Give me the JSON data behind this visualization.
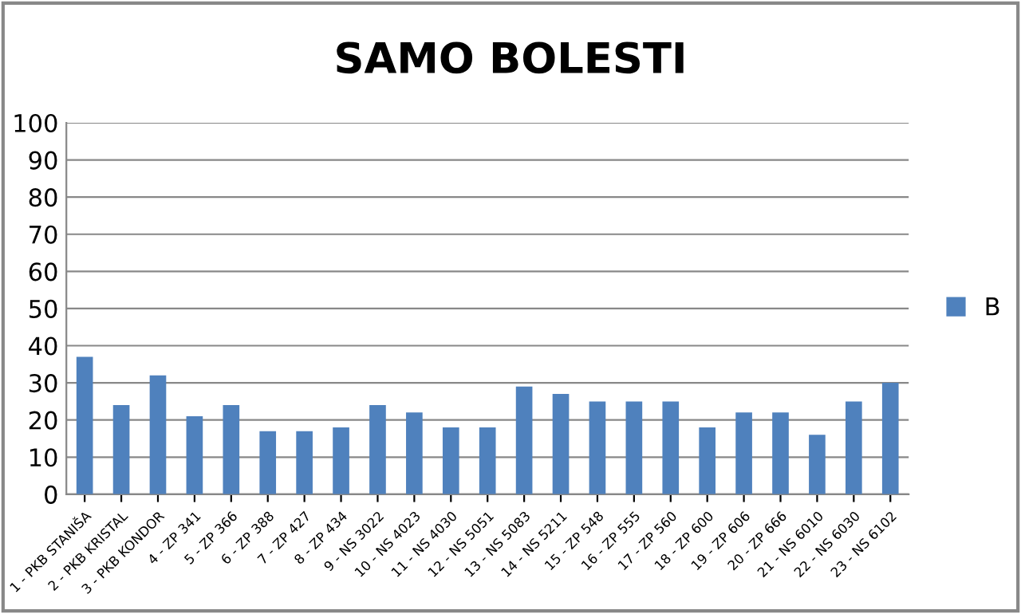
{
  "chart_data": {
    "type": "bar",
    "title": "SAMO BOLESTI",
    "categories": [
      "1 - PKB STANIŠA",
      "2 - PKB KRISTAL",
      "3 - PKB KONDOR",
      "4 - ZP 341",
      "5 - ZP 366",
      "6 - ZP 388",
      "7 - ZP 427",
      "8 - ZP 434",
      "9 - NS 3022",
      "10 - NS 4023",
      "11 - NS 4030",
      "12 - NS 5051",
      "13 - NS 5083",
      "14 - NS 5211",
      "15 - ZP 548",
      "16 - ZP 555",
      "17 - ZP 560",
      "18 - ZP 600",
      "19 - ZP 606",
      "20 - ZP 666",
      "21 - NS 6010",
      "22 - NS 6030",
      "23 - NS 6102"
    ],
    "series": [
      {
        "name": "B",
        "color": "#4f81bd",
        "values": [
          37,
          24,
          32,
          21,
          24,
          17,
          17,
          18,
          24,
          22,
          18,
          18,
          29,
          27,
          25,
          25,
          25,
          18,
          22,
          22,
          16,
          25,
          30
        ]
      }
    ],
    "ylim": [
      0,
      100
    ],
    "yticks": [
      0,
      10,
      20,
      30,
      40,
      50,
      60,
      70,
      80,
      90,
      100
    ],
    "grid": "y",
    "legend": "right"
  }
}
